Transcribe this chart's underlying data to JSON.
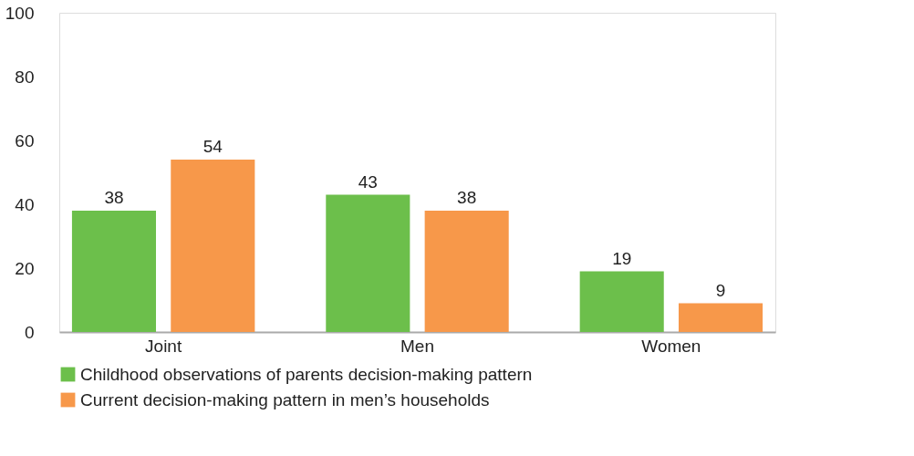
{
  "chart_data": {
    "type": "bar",
    "categories": [
      "Joint",
      "Men",
      "Women"
    ],
    "series": [
      {
        "name": "Childhood observations of parents decision-making pattern",
        "color": "#6cbf4b",
        "values": [
          38,
          43,
          19
        ]
      },
      {
        "name": "Current decision-making pattern in men’s households",
        "color": "#f7984a",
        "values": [
          54,
          38,
          9
        ]
      }
    ],
    "ylim": [
      0,
      100
    ],
    "yticks": [
      0,
      20,
      40,
      60,
      80,
      100
    ],
    "grid": false,
    "legend": "bottom",
    "data_labels": true
  }
}
